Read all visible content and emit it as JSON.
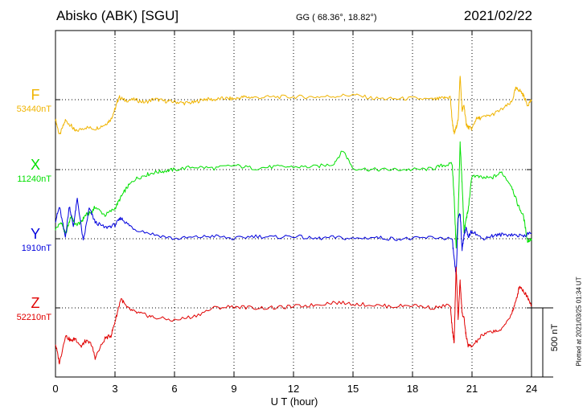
{
  "header": {
    "station": "Abisko (ABK)  [SGU]",
    "coords": "GG ( 68.36°,  18.82°)",
    "date": "2021/02/22"
  },
  "scale_label": "500 nT",
  "plotted_note": "Plotted at 2021/03/25 01:34 UT",
  "chart_data": {
    "type": "line",
    "title": "Abisko (ABK)  [SGU]",
    "xlabel": "U T (hour)",
    "ylabel": "",
    "xlim": [
      0,
      24
    ],
    "x_ticks": [
      "0",
      "3",
      "6",
      "9",
      "12",
      "15",
      "18",
      "21",
      "24"
    ],
    "grid": true,
    "scale_bar_nT": 500,
    "series": [
      {
        "name": "F",
        "baseline_label": "53440nT",
        "baseline_nT": 53440,
        "color": "#f0b400",
        "x": [
          0,
          0.2,
          0.5,
          0.8,
          1.0,
          1.5,
          2.0,
          2.5,
          2.8,
          3.0,
          3.2,
          3.5,
          4.0,
          4.5,
          5.0,
          5.5,
          6.0,
          6.5,
          7.0,
          7.5,
          8.0,
          8.5,
          9.0,
          9.5,
          10.0,
          11.0,
          12.0,
          13.0,
          14.0,
          15.0,
          16.0,
          17.0,
          18.0,
          19.0,
          19.5,
          19.9,
          20.0,
          20.1,
          20.2,
          20.3,
          20.4,
          20.5,
          20.6,
          20.7,
          20.8,
          21.0,
          21.2,
          21.5,
          22.0,
          22.5,
          23.0,
          23.2,
          23.4,
          23.6,
          23.8,
          24.0
        ],
        "y": [
          -140,
          -260,
          -150,
          -190,
          -230,
          -200,
          -210,
          -180,
          -140,
          -70,
          20,
          -5,
          0,
          -20,
          5,
          -10,
          -15,
          -25,
          -20,
          5,
          0,
          10,
          5,
          20,
          15,
          20,
          20,
          20,
          25,
          35,
          10,
          5,
          10,
          0,
          10,
          20,
          -150,
          -250,
          -200,
          -150,
          180,
          -80,
          -40,
          -170,
          -200,
          -210,
          -140,
          -130,
          -110,
          -70,
          -20,
          80,
          70,
          30,
          -40,
          0
        ]
      },
      {
        "name": "X",
        "baseline_label": "11240nT",
        "baseline_nT": 11240,
        "color": "#00e000",
        "x": [
          0,
          0.3,
          0.5,
          0.8,
          1.0,
          1.3,
          1.5,
          1.8,
          2.0,
          2.5,
          3.0,
          3.3,
          3.6,
          4.0,
          4.5,
          5.0,
          5.5,
          6.0,
          7.0,
          8.0,
          9.0,
          10.0,
          11.0,
          12.0,
          13.0,
          14.0,
          14.5,
          15.0,
          16.0,
          17.0,
          18.0,
          19.0,
          19.5,
          20.0,
          20.1,
          20.2,
          20.3,
          20.4,
          20.5,
          20.6,
          20.7,
          20.8,
          21.0,
          21.5,
          22.0,
          22.5,
          23.0,
          23.3,
          23.6,
          23.8,
          24.0
        ],
        "y": [
          -430,
          -380,
          -470,
          -330,
          -400,
          -380,
          -330,
          -310,
          -270,
          -330,
          -280,
          -200,
          -130,
          -70,
          -40,
          -20,
          -10,
          0,
          20,
          10,
          30,
          10,
          20,
          20,
          20,
          40,
          140,
          10,
          0,
          0,
          0,
          5,
          30,
          40,
          -200,
          -570,
          -340,
          190,
          -100,
          -450,
          -360,
          -300,
          -40,
          -60,
          -60,
          -20,
          -120,
          -250,
          -340,
          -520,
          -500
        ]
      },
      {
        "name": "Y",
        "baseline_label": "1910nT",
        "baseline_nT": 1910,
        "color": "#0000dd",
        "x": [
          0,
          0.2,
          0.5,
          0.7,
          0.9,
          1.1,
          1.4,
          1.7,
          2.0,
          2.5,
          3.0,
          3.3,
          3.6,
          4.0,
          5.0,
          6.0,
          7.0,
          8.0,
          9.0,
          10.0,
          11.0,
          12.0,
          13.0,
          14.0,
          15.0,
          16.0,
          17.0,
          18.0,
          19.0,
          20.0,
          20.1,
          20.2,
          20.3,
          20.4,
          20.5,
          20.6,
          20.7,
          20.8,
          21.0,
          21.5,
          22.0,
          22.5,
          23.0,
          23.5,
          24.0
        ],
        "y": [
          130,
          230,
          10,
          240,
          90,
          290,
          -20,
          220,
          120,
          80,
          100,
          150,
          110,
          70,
          30,
          0,
          10,
          20,
          0,
          20,
          10,
          20,
          0,
          10,
          0,
          10,
          0,
          0,
          10,
          0,
          -150,
          -270,
          150,
          190,
          -80,
          30,
          80,
          10,
          60,
          0,
          20,
          30,
          30,
          20,
          40
        ]
      },
      {
        "name": "Z",
        "baseline_label": "52210nT",
        "baseline_nT": 52210,
        "color": "#e00000",
        "x": [
          0,
          0.2,
          0.5,
          0.8,
          1.0,
          1.3,
          1.5,
          1.8,
          2.0,
          2.5,
          2.8,
          3.0,
          3.3,
          3.6,
          4.0,
          4.5,
          5.0,
          6.0,
          7.0,
          8.0,
          9.0,
          10.0,
          11.0,
          12.0,
          13.0,
          14.0,
          15.0,
          16.0,
          17.0,
          18.0,
          19.0,
          19.9,
          20.0,
          20.1,
          20.2,
          20.3,
          20.4,
          20.5,
          20.6,
          20.7,
          20.8,
          21.0,
          21.5,
          22.0,
          22.5,
          23.0,
          23.2,
          23.4,
          23.6,
          23.8,
          24.0
        ],
        "y": [
          -260,
          -400,
          -200,
          -240,
          -220,
          -280,
          -240,
          -260,
          -360,
          -220,
          -200,
          -100,
          70,
          0,
          -30,
          -50,
          -70,
          -90,
          -60,
          0,
          10,
          0,
          0,
          10,
          20,
          40,
          30,
          20,
          10,
          20,
          0,
          20,
          -150,
          -250,
          300,
          -90,
          200,
          -40,
          -80,
          -200,
          -270,
          -280,
          -200,
          -170,
          -160,
          -40,
          40,
          160,
          120,
          80,
          20
        ]
      }
    ]
  }
}
